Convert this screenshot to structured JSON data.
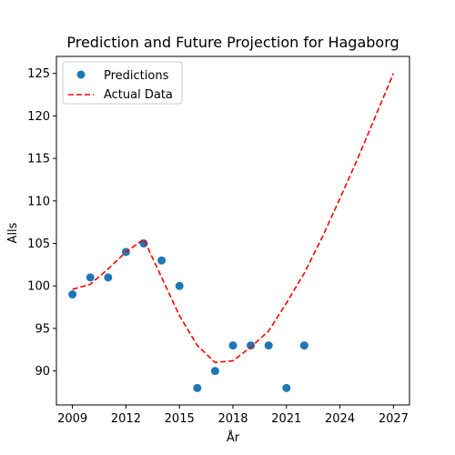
{
  "chart_data": {
    "type": "scatter",
    "title": "Prediction and Future Projection for Hagaborg",
    "xlabel": "År",
    "ylabel": "Alls",
    "xlim": [
      2008.1,
      2027.9
    ],
    "ylim": [
      86.0,
      127.0
    ],
    "xticks": [
      2009,
      2012,
      2015,
      2018,
      2021,
      2024,
      2027
    ],
    "yticks": [
      90,
      95,
      100,
      105,
      110,
      115,
      120,
      125
    ],
    "grid": false,
    "legend_position": "top-left",
    "series": [
      {
        "name": "Predictions",
        "kind": "scatter",
        "color": "#1f77b4",
        "x": [
          2009,
          2010,
          2011,
          2012,
          2013,
          2014,
          2015,
          2016,
          2017,
          2018,
          2019,
          2020,
          2021,
          2022
        ],
        "y": [
          99,
          101,
          101,
          104,
          105,
          103,
          100,
          88,
          90,
          93,
          93,
          93,
          88,
          93
        ]
      },
      {
        "name": "Actual Data",
        "kind": "line",
        "style": "dashed",
        "color": "#ff0000",
        "x": [
          2009,
          2010,
          2011,
          2012,
          2013,
          2014,
          2015,
          2016,
          2017,
          2018,
          2019,
          2020,
          2021,
          2022,
          2023,
          2024,
          2025,
          2026,
          2027
        ],
        "y": [
          99.6,
          100.2,
          102.0,
          104.0,
          105.5,
          101.0,
          96.5,
          93.0,
          91.0,
          91.2,
          92.8,
          94.7,
          98.0,
          101.5,
          105.7,
          110.3,
          115.0,
          120.0,
          125.0
        ]
      }
    ]
  }
}
